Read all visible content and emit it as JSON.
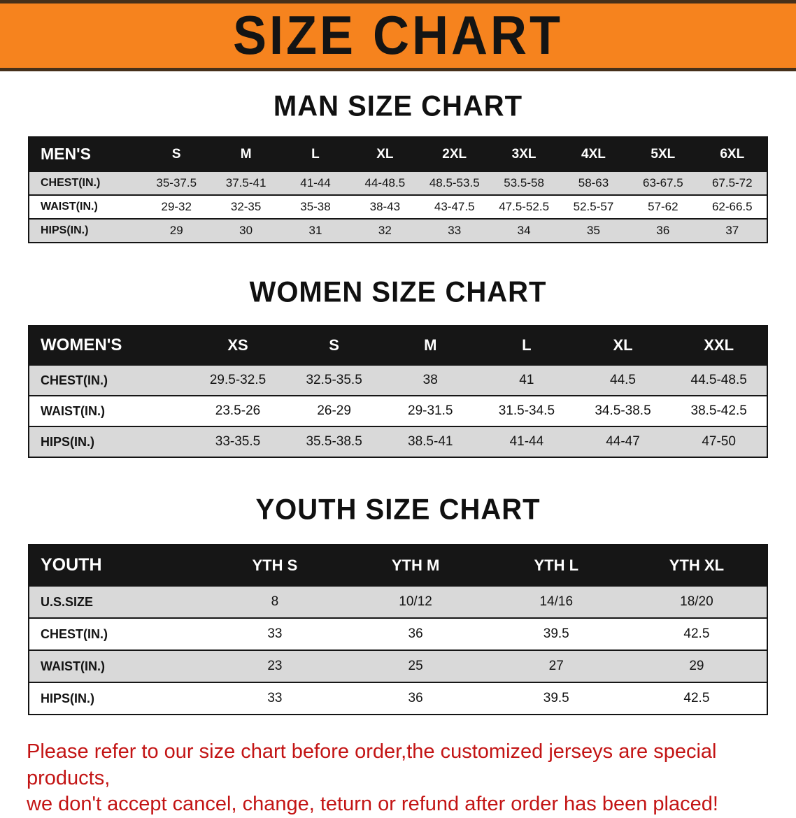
{
  "banner": {
    "title": "SIZE CHART"
  },
  "colors": {
    "banner_bg": "#f6831e",
    "header_bg": "#161616",
    "row_gray": "#d9d9d9",
    "note_red": "#c31414"
  },
  "sections": {
    "men": {
      "heading": "MAN SIZE CHART",
      "header": [
        "MEN'S",
        "S",
        "M",
        "L",
        "XL",
        "2XL",
        "3XL",
        "4XL",
        "5XL",
        "6XL"
      ],
      "rows": [
        [
          "CHEST(IN.)",
          "35-37.5",
          "37.5-41",
          "41-44",
          "44-48.5",
          "48.5-53.5",
          "53.5-58",
          "58-63",
          "63-67.5",
          "67.5-72"
        ],
        [
          "WAIST(IN.)",
          "29-32",
          "32-35",
          "35-38",
          "38-43",
          "43-47.5",
          "47.5-52.5",
          "52.5-57",
          "57-62",
          "62-66.5"
        ],
        [
          "HIPS(IN.)",
          "29",
          "30",
          "31",
          "32",
          "33",
          "34",
          "35",
          "36",
          "37"
        ]
      ]
    },
    "women": {
      "heading": "WOMEN SIZE CHART",
      "header": [
        "WOMEN'S",
        "XS",
        "S",
        "M",
        "L",
        "XL",
        "XXL"
      ],
      "rows": [
        [
          "CHEST(IN.)",
          "29.5-32.5",
          "32.5-35.5",
          "38",
          "41",
          "44.5",
          "44.5-48.5"
        ],
        [
          "WAIST(IN.)",
          "23.5-26",
          "26-29",
          "29-31.5",
          "31.5-34.5",
          "34.5-38.5",
          "38.5-42.5"
        ],
        [
          "HIPS(IN.)",
          "33-35.5",
          "35.5-38.5",
          "38.5-41",
          "41-44",
          "44-47",
          "47-50"
        ]
      ]
    },
    "youth": {
      "heading": "YOUTH SIZE CHART",
      "header": [
        "YOUTH",
        "YTH S",
        "YTH M",
        "YTH L",
        "YTH XL"
      ],
      "rows": [
        [
          "U.S.SIZE",
          "8",
          "10/12",
          "14/16",
          "18/20"
        ],
        [
          "CHEST(IN.)",
          "33",
          "36",
          "39.5",
          "42.5"
        ],
        [
          "WAIST(IN.)",
          "23",
          "25",
          "27",
          "29"
        ],
        [
          "HIPS(IN.)",
          "33",
          "36",
          "39.5",
          "42.5"
        ]
      ]
    }
  },
  "footnote": {
    "line1": "Please refer to our size chart before order,the customized jerseys are special products,",
    "line2": "we don't accept cancel, change, teturn or refund after order has been placed!"
  }
}
